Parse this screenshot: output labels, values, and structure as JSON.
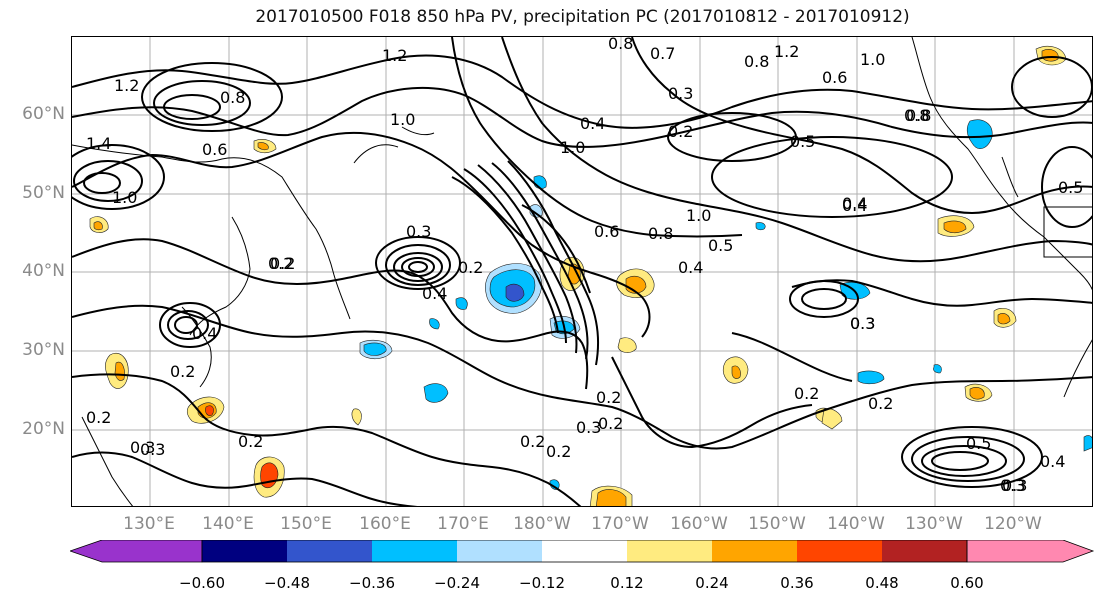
{
  "title": "2017010500 F018 850 hPa PV, precipitation PC (2017010812 - 2017010912)",
  "latitude_labels": [
    "60°N",
    "50°N",
    "40°N",
    "30°N",
    "20°N"
  ],
  "longitude_labels": [
    "130°E",
    "140°E",
    "150°E",
    "160°E",
    "170°E",
    "180°W",
    "170°W",
    "160°W",
    "150°W",
    "140°W",
    "130°W",
    "120°W"
  ],
  "contour_labels": [
    "0.8",
    "0.7",
    "1.2",
    "0.8",
    "0.6",
    "1.0",
    "1.2",
    "0.8",
    "1.0",
    "0.4",
    "0.3",
    "0.2",
    "1.0",
    "0.6",
    "0.8",
    "0.5",
    "0.4",
    "1.0",
    "0.5",
    "0.3",
    "0.4",
    "0.2",
    "0.3",
    "0.2",
    "0.2",
    "0.2",
    "0.2",
    "0.2",
    "0.3",
    "0.2",
    "0.4",
    "0.3",
    "0.5",
    "0.4",
    "0.3",
    "0.2",
    "1.4",
    "1.0",
    "1.2",
    "0.8",
    "0.6",
    "0.2",
    "0.4",
    "0.3",
    "0.2",
    "0.2",
    "0.3",
    "0.2",
    "0.3",
    "0.8",
    "0.5",
    "0.4"
  ],
  "colorbar": {
    "tick_labels": [
      "−0.60",
      "−0.48",
      "−0.36",
      "−0.24",
      "−0.12",
      "0.12",
      "0.24",
      "0.36",
      "0.48",
      "0.60"
    ],
    "levels": [
      -0.6,
      -0.48,
      -0.36,
      -0.24,
      -0.12,
      0.12,
      0.24,
      0.36,
      0.48,
      0.6
    ],
    "colors": [
      "#9933cc",
      "#000080",
      "#3355cc",
      "#00bfff",
      "#b0e0ff",
      "#ffffff",
      "#ffeb80",
      "#ffa500",
      "#ff4500",
      "#b22222",
      "#ff88b0"
    ]
  },
  "shading_colors": {
    "light_orange": "#ffeb80",
    "orange": "#ffa500",
    "red_orange": "#ff4500",
    "light_blue": "#b0e0ff",
    "blue": "#00bfff",
    "mid_blue": "#3355cc"
  }
}
